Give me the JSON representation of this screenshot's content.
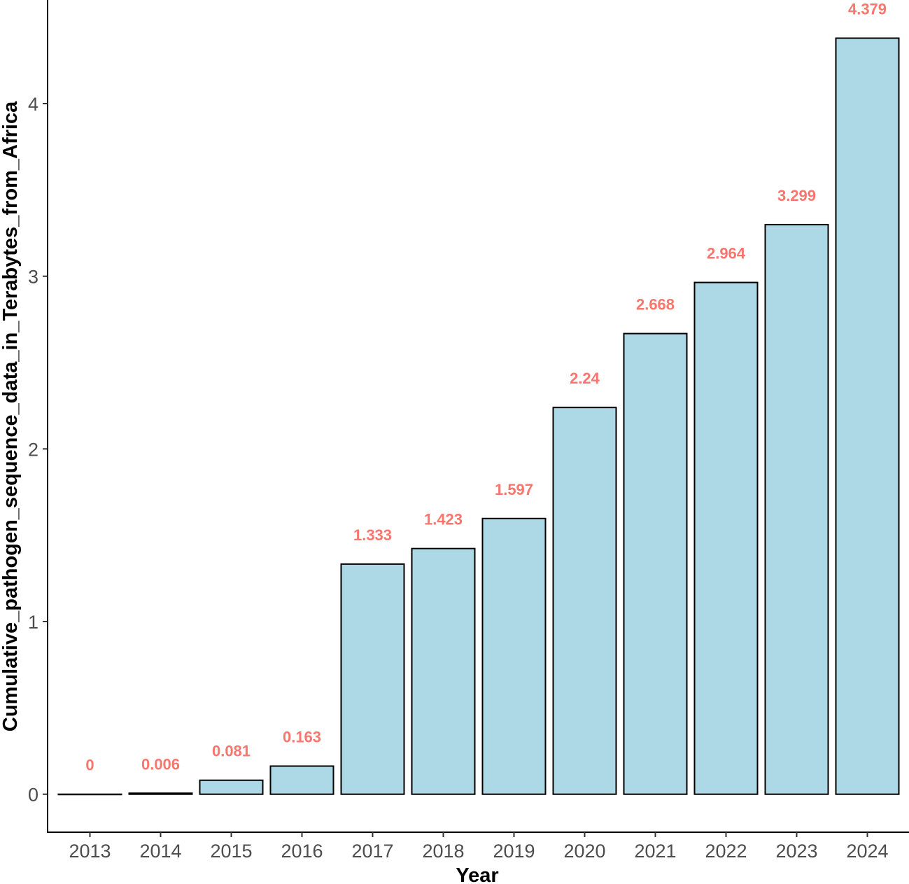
{
  "chart_data": {
    "type": "bar",
    "categories": [
      "2013",
      "2014",
      "2015",
      "2016",
      "2017",
      "2018",
      "2019",
      "2020",
      "2021",
      "2022",
      "2023",
      "2024"
    ],
    "values": [
      0,
      0.006,
      0.081,
      0.163,
      1.333,
      1.423,
      1.597,
      2.24,
      2.668,
      2.964,
      3.299,
      4.379
    ],
    "data_labels": [
      "0",
      "0.006",
      "0.081",
      "0.163",
      "1.333",
      "1.423",
      "1.597",
      "2.24",
      "2.668",
      "2.964",
      "3.299",
      "4.379"
    ],
    "xlabel": "Year",
    "ylabel": "Cumulative_pathogen_sequence_data_in_Terabytes_from_Africa",
    "yticks": [
      "0",
      "1",
      "2",
      "3",
      "4"
    ],
    "ylim": [
      -0.22,
      4.6
    ],
    "grid": false,
    "colors": {
      "bar_fill": "#add8e6",
      "bar_stroke": "#000000",
      "data_label": "#f8766d"
    }
  }
}
